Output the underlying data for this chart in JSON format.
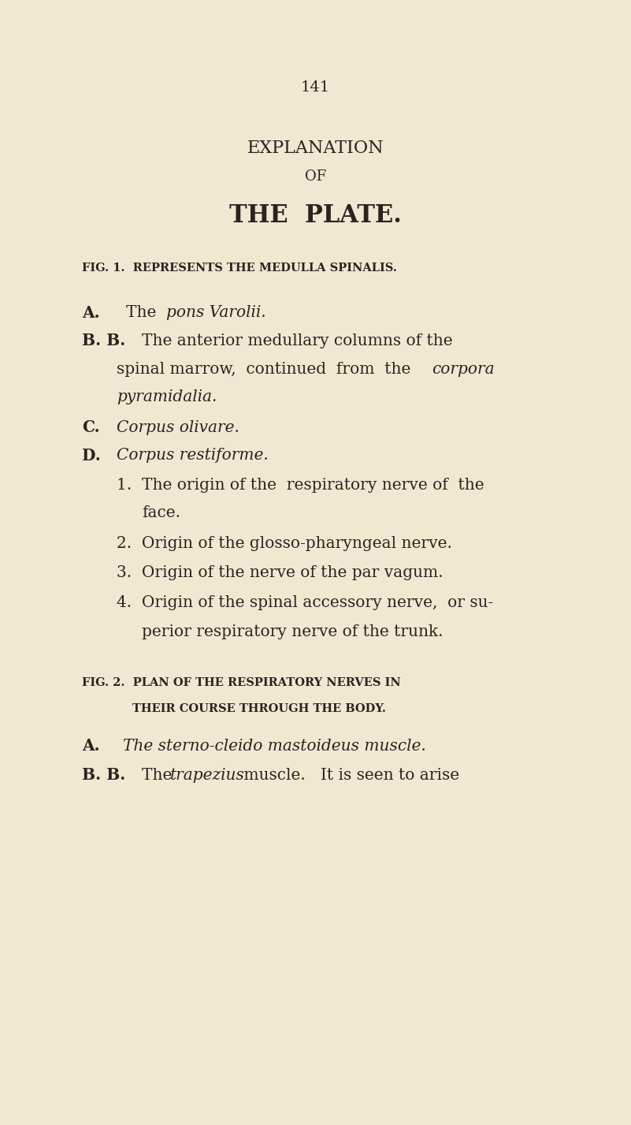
{
  "bg_color": "#f0e8d0",
  "text_color": "#2a2320",
  "page_number": "141",
  "title1": "EXPLANATION",
  "title2": "OF",
  "title3": "THE  PLATE.",
  "fig1_heading": "FIG. 1.  REPRESENTS THE MEDULLA SPINALIS.",
  "fig2_heading1": "FIG. 2.  PLAN OF THE RESPIRATORY NERVES IN",
  "fig2_heading2": "THEIR COURSE THROUGH THE BODY."
}
